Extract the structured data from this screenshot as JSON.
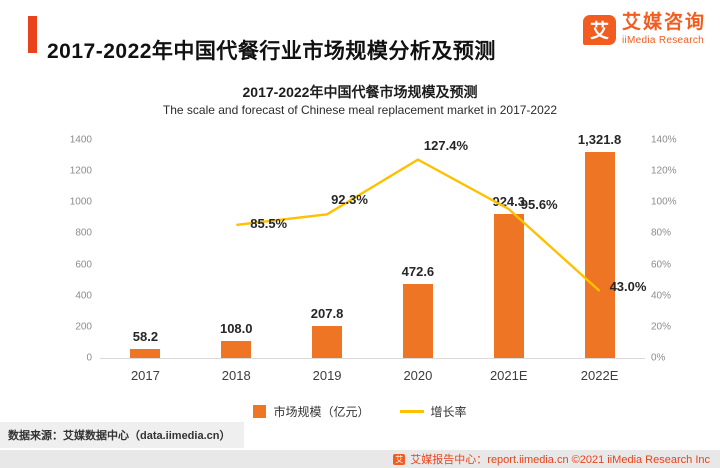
{
  "header": {
    "title": "2017-2022年中国代餐行业市场规模分析及预测",
    "logo": {
      "icon_char": "艾",
      "name_cn": "艾媒咨询",
      "name_en": "iiMedia Research"
    }
  },
  "chart": {
    "title_cn": "2017-2022年中国代餐市场规模及预测",
    "title_en": "The scale and forecast of Chinese meal replacement market in 2017-2022"
  },
  "chart_data": {
    "type": "combo-bar-line",
    "categories": [
      "2017",
      "2018",
      "2019",
      "2020",
      "2021E",
      "2022E"
    ],
    "bar_series": {
      "name": "市场规模（亿元）",
      "color": "#ED7524",
      "values": [
        58.2,
        108.0,
        207.8,
        472.6,
        924.3,
        1321.8
      ],
      "labels": [
        "58.2",
        "108.0",
        "207.8",
        "472.6",
        "924.3",
        "1,321.8"
      ]
    },
    "line_series": {
      "name": "增长率",
      "color": "#FFC000",
      "categories": [
        "2018",
        "2019",
        "2020",
        "2021E",
        "2022E"
      ],
      "values": [
        85.5,
        92.3,
        127.4,
        95.6,
        43.0
      ],
      "labels": [
        "85.5%",
        "92.3%",
        "127.4%",
        "95.6%",
        "43.0%"
      ]
    },
    "left_axis": {
      "min": 0,
      "max": 1400,
      "step": 200,
      "tick_values": [
        0,
        200,
        400,
        600,
        800,
        1000,
        1200,
        1400
      ]
    },
    "right_axis": {
      "min": 0,
      "max": 140,
      "step": 20,
      "tick_values": [
        0,
        20,
        40,
        60,
        80,
        100,
        120,
        140
      ],
      "tick_labels": [
        "0%",
        "20%",
        "40%",
        "60%",
        "80%",
        "100%",
        "120%",
        "140%"
      ]
    },
    "legend": [
      {
        "label": "市场规模（亿元）",
        "swatch": "bar",
        "color": "#ED7524"
      },
      {
        "label": "增长率",
        "swatch": "line",
        "color": "#FFC000"
      }
    ],
    "grid": false,
    "legend_position": "bottom-center"
  },
  "source": "数据来源：艾媒数据中心（data.iimedia.cn）",
  "footer": {
    "icon_char": "艾",
    "text": "艾媒报告中心：report.iimedia.cn  ©2021  iiMedia Research Inc"
  }
}
